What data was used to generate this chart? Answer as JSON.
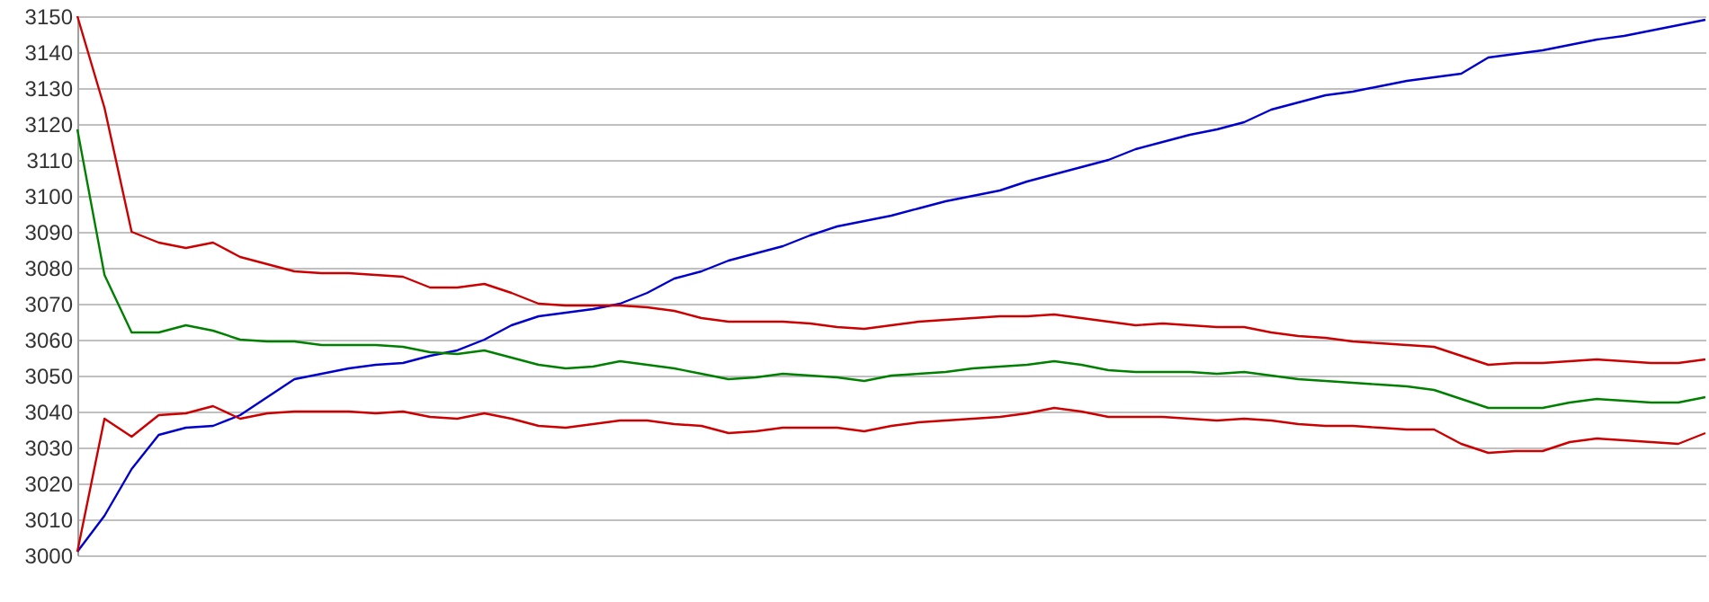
{
  "chart_data": {
    "type": "line",
    "categories": [
      null,
      null,
      null,
      null,
      null,
      null,
      null,
      null,
      null,
      null,
      null,
      null,
      null,
      null,
      null,
      null,
      null,
      null,
      null,
      null,
      null,
      null,
      null,
      null,
      null,
      null,
      null,
      null,
      null,
      null,
      null,
      null,
      null,
      null,
      null,
      null,
      null,
      null,
      null,
      null,
      null,
      null,
      null,
      null,
      null,
      null,
      null,
      null,
      null,
      null,
      null,
      null,
      null,
      null,
      null,
      null,
      null,
      null,
      null,
      null,
      null
    ],
    "series": [
      {
        "color": "#0000cc",
        "values": [
          3001,
          3011,
          3024,
          3033.5,
          3035.5,
          3036,
          3039,
          3044,
          3049,
          3050.5,
          3052,
          3053,
          3053.5,
          3055.5,
          3057,
          3060,
          3064,
          3066.5,
          3067.5,
          3068.5,
          3070,
          3073,
          3077,
          3079,
          3082,
          3084,
          3086,
          3089,
          3091.5,
          3093,
          3094.5,
          3096.5,
          3098.5,
          3100,
          3101.5,
          3104,
          3106,
          3108,
          3110,
          3113,
          3115,
          3117,
          3118.5,
          3120.5,
          3124,
          3126,
          3128,
          3129,
          3130.5,
          3132,
          3133,
          3134,
          3138.5,
          3139.5,
          3140.5,
          3142,
          3143.5,
          3144.5,
          3146,
          3147.5,
          3149
        ]
      },
      {
        "color": "#cc0000",
        "values": [
          3150,
          3124.5,
          3090,
          3087,
          3085.5,
          3087,
          3083,
          3081,
          3079,
          3078.5,
          3078.5,
          3078,
          3077.5,
          3074.5,
          3074.5,
          3075.5,
          3073,
          3070,
          3069.5,
          3069.5,
          3069.5,
          3069,
          3068,
          3066,
          3065,
          3065,
          3065,
          3064.5,
          3063.5,
          3063,
          3064,
          3065,
          3065.5,
          3066,
          3066.5,
          3066.5,
          3067,
          3066,
          3065,
          3064,
          3064.5,
          3064,
          3063.5,
          3063.5,
          3062,
          3061,
          3060.5,
          3059.5,
          3059,
          3058.5,
          3058,
          3055.5,
          3053,
          3053.5,
          3053.5,
          3054,
          3054.5,
          3054,
          3053.5,
          3053.5,
          3054.5
        ]
      },
      {
        "color": "#008000",
        "values": [
          3118.5,
          3078,
          3062,
          3062,
          3064,
          3062.5,
          3060,
          3059.5,
          3059.5,
          3058.5,
          3058.5,
          3058.5,
          3058,
          3056.5,
          3056,
          3057,
          3055,
          3053,
          3052,
          3052.5,
          3054,
          3053,
          3052,
          3050.5,
          3049,
          3049.5,
          3050.5,
          3050,
          3049.5,
          3048.5,
          3050,
          3050.5,
          3051,
          3052,
          3052.5,
          3053,
          3054,
          3053,
          3051.5,
          3051,
          3051,
          3051,
          3050.5,
          3051,
          3050,
          3049,
          3048.5,
          3048,
          3047.5,
          3047,
          3046,
          3043.5,
          3041,
          3041,
          3041,
          3042.5,
          3043.5,
          3043,
          3042.5,
          3042.5,
          3044
        ]
      },
      {
        "color": "#cc0000",
        "values": [
          3001,
          3038,
          3033,
          3039,
          3039.5,
          3041.5,
          3038,
          3039.5,
          3040,
          3040,
          3040,
          3039.5,
          3040,
          3038.5,
          3038,
          3039.5,
          3038,
          3036,
          3035.5,
          3036.5,
          3037.5,
          3037.5,
          3036.5,
          3036,
          3034,
          3034.5,
          3035.5,
          3035.5,
          3035.5,
          3034.5,
          3036,
          3037,
          3037.5,
          3038,
          3038.5,
          3039.5,
          3041,
          3040,
          3038.5,
          3038.5,
          3038.5,
          3038,
          3037.5,
          3038,
          3037.5,
          3036.5,
          3036,
          3036,
          3035.5,
          3035,
          3035,
          3031,
          3028.5,
          3029,
          3029,
          3031.5,
          3032.5,
          3032,
          3031.5,
          3031,
          3034
        ]
      }
    ],
    "ylim": [
      3000,
      3150
    ],
    "yticks": [
      3000,
      3010,
      3020,
      3030,
      3040,
      3050,
      3060,
      3070,
      3080,
      3090,
      3100,
      3110,
      3120,
      3130,
      3140,
      3150
    ],
    "grid": "y",
    "tick_labels": "y"
  }
}
